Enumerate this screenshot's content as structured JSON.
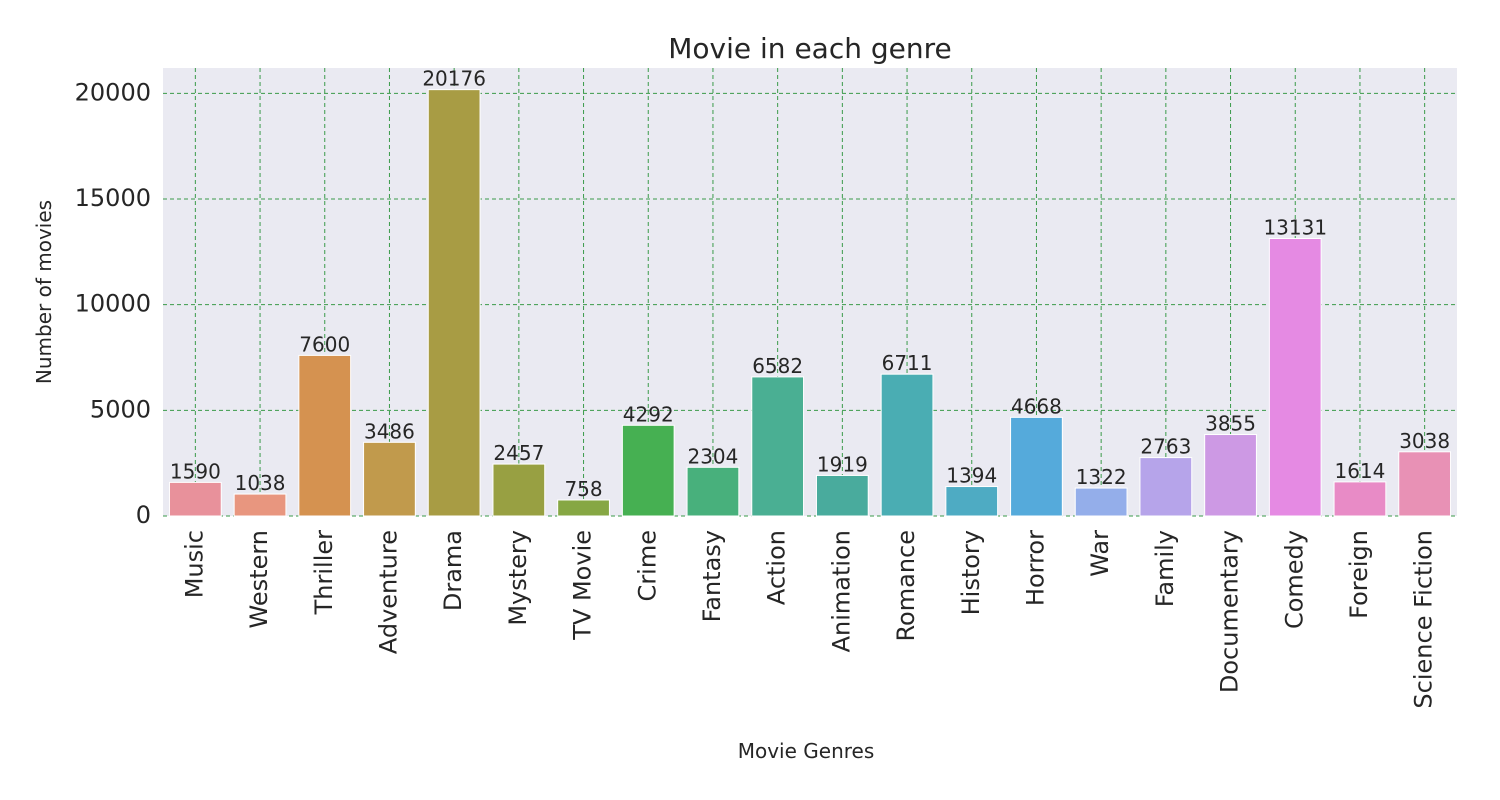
{
  "chart_data": {
    "type": "bar",
    "title": "Movie in each genre",
    "xlabel": "Movie Genres",
    "ylabel": "Number of movies",
    "ylim": [
      0,
      21200
    ],
    "yticks": [
      0,
      5000,
      10000,
      15000,
      20000
    ],
    "grid": true,
    "categories": [
      "Music",
      "Western",
      "Thriller",
      "Adventure",
      "Drama",
      "Mystery",
      "TV Movie",
      "Crime",
      "Fantasy",
      "Action",
      "Animation",
      "Romance",
      "History",
      "Horror",
      "War",
      "Family",
      "Documentary",
      "Comedy",
      "Foreign",
      "Science Fiction"
    ],
    "values": [
      1590,
      1038,
      7600,
      3486,
      20176,
      2457,
      758,
      4292,
      2304,
      6582,
      1919,
      6711,
      1394,
      4668,
      1322,
      2763,
      3855,
      13131,
      1614,
      3038
    ],
    "colors": [
      "#e8919b",
      "#e8967f",
      "#d59250",
      "#c19a4c",
      "#a89c44",
      "#98a042",
      "#86a744",
      "#46b052",
      "#48b07c",
      "#4aaf93",
      "#49ab9d",
      "#4aadb3",
      "#4eabc3",
      "#55aadb",
      "#94aeea",
      "#b6a4ea",
      "#cd99e4",
      "#e58ae3",
      "#e88bc6",
      "#e891b5"
    ],
    "grid_color": "#3a9a4a",
    "background_color": "#eaeaf2"
  }
}
